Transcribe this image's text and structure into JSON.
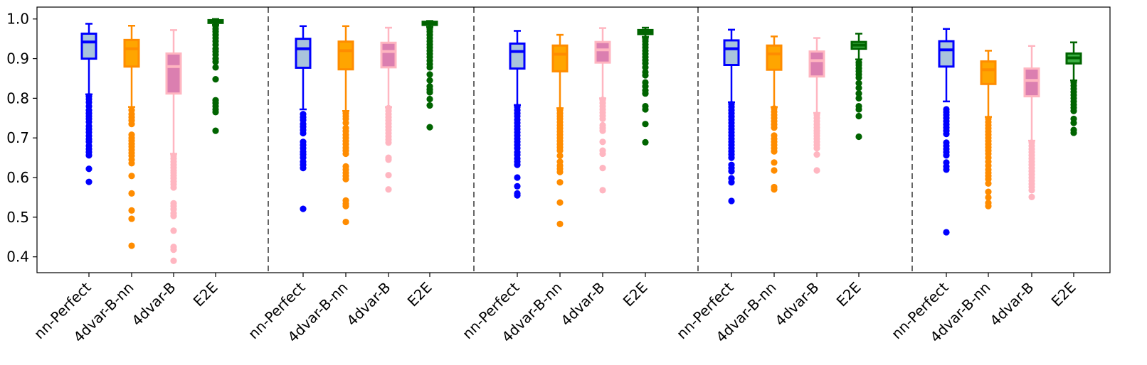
{
  "chart_data": {
    "type": "boxplot",
    "ylim": [
      0.36,
      1.03
    ],
    "yticks": [
      "0.4",
      "0.5",
      "0.6",
      "0.7",
      "0.8",
      "0.9",
      "1.0"
    ],
    "legend": "none",
    "grid": false,
    "method_colors": {
      "nn-Perfect": {
        "edge": "#0000ff",
        "fill": "#a9c4dc",
        "median": "#0000ff"
      },
      "4dvar-B-nn": {
        "edge": "#ff8c00",
        "fill": "#ffa500",
        "median": "#ff8c00"
      },
      "4dvar-B": {
        "edge": "#ffb6c1",
        "fill": "#db7fb0",
        "median": "#ffb6c1"
      },
      "E2E": {
        "edge": "#006400",
        "fill": "#3cb043",
        "median": "#006400"
      }
    },
    "groups": [
      {
        "boxes": [
          {
            "label": "nn-Perfect",
            "q1": 0.9,
            "median": 0.942,
            "q3": 0.963,
            "whislo": 0.81,
            "whishi": 0.988,
            "fliers": [
              0.805,
              0.798,
              0.79,
              0.78,
              0.77,
              0.762,
              0.755,
              0.748,
              0.74,
              0.73,
              0.722,
              0.714,
              0.705,
              0.697,
              0.69,
              0.68,
              0.672,
              0.664,
              0.656,
              0.622,
              0.589
            ]
          },
          {
            "label": "4dvar-B-nn",
            "q1": 0.88,
            "median": 0.925,
            "q3": 0.947,
            "whislo": 0.778,
            "whishi": 0.983,
            "fliers": [
              0.77,
              0.76,
              0.752,
              0.744,
              0.735,
              0.708,
              0.7,
              0.693,
              0.685,
              0.678,
              0.67,
              0.662,
              0.655,
              0.645,
              0.636,
              0.604,
              0.56,
              0.517,
              0.496,
              0.428
            ]
          },
          {
            "label": "4dvar-B",
            "q1": 0.812,
            "median": 0.88,
            "q3": 0.913,
            "whislo": 0.66,
            "whishi": 0.972,
            "fliers": [
              0.655,
              0.648,
              0.64,
              0.632,
              0.625,
              0.618,
              0.612,
              0.605,
              0.598,
              0.59,
              0.583,
              0.575,
              0.535,
              0.528,
              0.52,
              0.51,
              0.503,
              0.466,
              0.425,
              0.418,
              0.39
            ]
          },
          {
            "label": "E2E",
            "q1": 0.99,
            "median": 0.994,
            "q3": 0.997,
            "whislo": 0.985,
            "whishi": 1.0,
            "fliers": [
              0.982,
              0.975,
              0.968,
              0.96,
              0.952,
              0.944,
              0.935,
              0.925,
              0.918,
              0.91,
              0.9,
              0.892,
              0.878,
              0.848,
              0.795,
              0.788,
              0.78,
              0.772,
              0.765,
              0.718
            ]
          }
        ]
      },
      {
        "boxes": [
          {
            "label": "nn-Perfect",
            "q1": 0.877,
            "median": 0.925,
            "q3": 0.95,
            "whislo": 0.772,
            "whishi": 0.982,
            "fliers": [
              0.76,
              0.752,
              0.745,
              0.735,
              0.728,
              0.72,
              0.712,
              0.69,
              0.682,
              0.674,
              0.665,
              0.658,
              0.65,
              0.64,
              0.632,
              0.624,
              0.521
            ]
          },
          {
            "label": "4dvar-B-nn",
            "q1": 0.873,
            "median": 0.92,
            "q3": 0.943,
            "whislo": 0.768,
            "whishi": 0.982,
            "fliers": [
              0.762,
              0.755,
              0.748,
              0.738,
              0.725,
              0.717,
              0.708,
              0.7,
              0.692,
              0.684,
              0.675,
              0.668,
              0.66,
              0.628,
              0.62,
              0.612,
              0.604,
              0.596,
              0.542,
              0.534,
              0.528,
              0.488
            ]
          },
          {
            "label": "4dvar-B",
            "q1": 0.878,
            "median": 0.918,
            "q3": 0.94,
            "whislo": 0.778,
            "whishi": 0.978,
            "fliers": [
              0.775,
              0.768,
              0.76,
              0.752,
              0.744,
              0.736,
              0.728,
              0.72,
              0.712,
              0.704,
              0.696,
              0.688,
              0.65,
              0.645,
              0.606,
              0.57
            ]
          },
          {
            "label": "E2E",
            "q1": 0.985,
            "median": 0.989,
            "q3": 0.993,
            "whislo": 0.98,
            "whishi": 0.995,
            "fliers": [
              0.975,
              0.968,
              0.96,
              0.952,
              0.944,
              0.936,
              0.928,
              0.92,
              0.912,
              0.904,
              0.895,
              0.886,
              0.878,
              0.86,
              0.845,
              0.83,
              0.822,
              0.815,
              0.798,
              0.782,
              0.727
            ]
          }
        ]
      },
      {
        "boxes": [
          {
            "label": "nn-Perfect",
            "q1": 0.875,
            "median": 0.918,
            "q3": 0.938,
            "whislo": 0.783,
            "whishi": 0.97,
            "fliers": [
              0.778,
              0.77,
              0.762,
              0.755,
              0.746,
              0.738,
              0.73,
              0.722,
              0.714,
              0.706,
              0.698,
              0.69,
              0.682,
              0.674,
              0.664,
              0.657,
              0.648,
              0.64,
              0.632,
              0.6,
              0.578,
              0.56,
              0.555
            ]
          },
          {
            "label": "4dvar-B-nn",
            "q1": 0.868,
            "median": 0.911,
            "q3": 0.933,
            "whislo": 0.775,
            "whishi": 0.96,
            "fliers": [
              0.77,
              0.762,
              0.755,
              0.748,
              0.74,
              0.732,
              0.724,
              0.716,
              0.708,
              0.7,
              0.692,
              0.684,
              0.676,
              0.668,
              0.655,
              0.64,
              0.63,
              0.622,
              0.614,
              0.588,
              0.537,
              0.483
            ]
          },
          {
            "label": "4dvar-B",
            "q1": 0.89,
            "median": 0.922,
            "q3": 0.942,
            "whislo": 0.8,
            "whishi": 0.977,
            "fliers": [
              0.796,
              0.788,
              0.78,
              0.772,
              0.764,
              0.756,
              0.748,
              0.732,
              0.725,
              0.718,
              0.69,
              0.668,
              0.66,
              0.624,
              0.568
            ]
          },
          {
            "label": "E2E",
            "q1": 0.962,
            "median": 0.967,
            "q3": 0.972,
            "whislo": 0.955,
            "whishi": 0.978,
            "fliers": [
              0.95,
              0.944,
              0.936,
              0.928,
              0.92,
              0.912,
              0.904,
              0.896,
              0.888,
              0.878,
              0.866,
              0.858,
              0.84,
              0.83,
              0.82,
              0.812,
              0.78,
              0.772,
              0.735,
              0.689
            ]
          }
        ]
      },
      {
        "boxes": [
          {
            "label": "nn-Perfect",
            "q1": 0.884,
            "median": 0.925,
            "q3": 0.946,
            "whislo": 0.79,
            "whishi": 0.973,
            "fliers": [
              0.785,
              0.778,
              0.77,
              0.762,
              0.754,
              0.746,
              0.738,
              0.73,
              0.722,
              0.714,
              0.706,
              0.698,
              0.69,
              0.682,
              0.674,
              0.666,
              0.658,
              0.65,
              0.632,
              0.624,
              0.616,
              0.598,
              0.588,
              0.541
            ]
          },
          {
            "label": "4dvar-B-nn",
            "q1": 0.872,
            "median": 0.912,
            "q3": 0.933,
            "whislo": 0.778,
            "whishi": 0.956,
            "fliers": [
              0.774,
              0.766,
              0.758,
              0.75,
              0.742,
              0.734,
              0.726,
              0.706,
              0.698,
              0.69,
              0.682,
              0.674,
              0.666,
              0.638,
              0.618,
              0.576,
              0.57
            ]
          },
          {
            "label": "4dvar-B",
            "q1": 0.855,
            "median": 0.895,
            "q3": 0.918,
            "whislo": 0.763,
            "whishi": 0.952,
            "fliers": [
              0.758,
              0.75,
              0.742,
              0.734,
              0.726,
              0.718,
              0.712,
              0.705,
              0.698,
              0.69,
              0.682,
              0.674,
              0.658,
              0.618
            ]
          },
          {
            "label": "E2E",
            "q1": 0.925,
            "median": 0.934,
            "q3": 0.942,
            "whislo": 0.898,
            "whishi": 0.963,
            "fliers": [
              0.89,
              0.884,
              0.876,
              0.868,
              0.86,
              0.852,
              0.838,
              0.826,
              0.812,
              0.8,
              0.78,
              0.772,
              0.755,
              0.703
            ]
          }
        ]
      },
      {
        "boxes": [
          {
            "label": "nn-Perfect",
            "q1": 0.88,
            "median": 0.922,
            "q3": 0.944,
            "whislo": 0.792,
            "whishi": 0.975,
            "fliers": [
              0.772,
              0.765,
              0.758,
              0.75,
              0.742,
              0.734,
              0.726,
              0.718,
              0.71,
              0.688,
              0.68,
              0.672,
              0.664,
              0.656,
              0.638,
              0.628,
              0.62,
              0.462
            ]
          },
          {
            "label": "4dvar-B-nn",
            "q1": 0.836,
            "median": 0.872,
            "q3": 0.893,
            "whislo": 0.753,
            "whishi": 0.92,
            "fliers": [
              0.748,
              0.74,
              0.732,
              0.724,
              0.716,
              0.708,
              0.7,
              0.692,
              0.684,
              0.676,
              0.668,
              0.66,
              0.65,
              0.64,
              0.63,
              0.62,
              0.612,
              0.604,
              0.596,
              0.585,
              0.564,
              0.55,
              0.536,
              0.528
            ]
          },
          {
            "label": "4dvar-B",
            "q1": 0.805,
            "median": 0.845,
            "q3": 0.875,
            "whislo": 0.693,
            "whishi": 0.932,
            "fliers": [
              0.688,
              0.68,
              0.672,
              0.664,
              0.656,
              0.648,
              0.64,
              0.632,
              0.624,
              0.616,
              0.608,
              0.6,
              0.592,
              0.584,
              0.576,
              0.568,
              0.551
            ]
          },
          {
            "label": "E2E",
            "q1": 0.888,
            "median": 0.902,
            "q3": 0.913,
            "whislo": 0.845,
            "whishi": 0.941,
            "fliers": [
              0.84,
              0.832,
              0.824,
              0.816,
              0.808,
              0.8,
              0.792,
              0.784,
              0.776,
              0.768,
              0.748,
              0.738,
              0.72,
              0.713
            ]
          }
        ]
      }
    ]
  }
}
